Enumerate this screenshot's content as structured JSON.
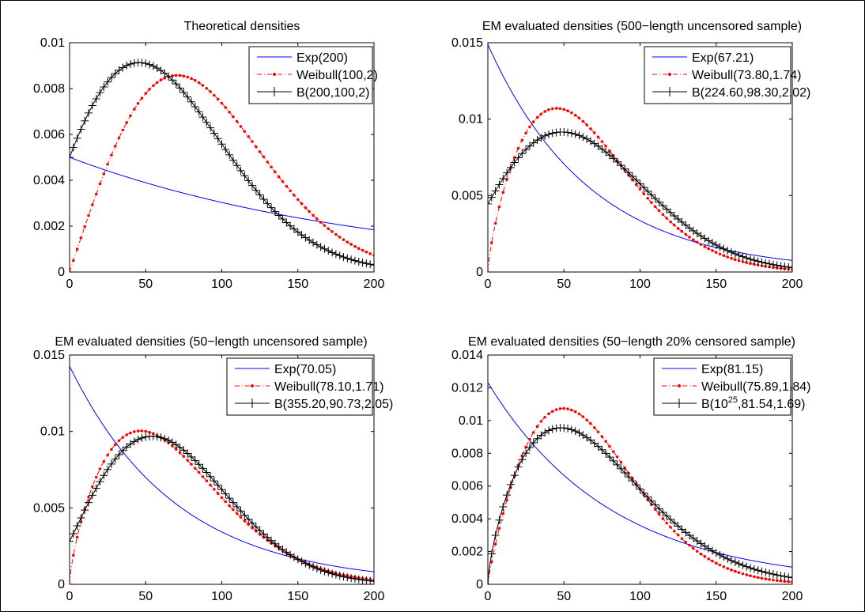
{
  "chart_data": [
    {
      "type": "line",
      "title": "Theoretical densities",
      "xlim": [
        0,
        200
      ],
      "ylim": [
        0,
        0.01
      ],
      "xticks": [
        0,
        50,
        100,
        150,
        200
      ],
      "xtick_labels": [
        "0",
        "50",
        "100",
        "150",
        "200"
      ],
      "yticks": [
        0,
        0.002,
        0.004,
        0.006,
        0.008,
        0.01
      ],
      "ytick_labels": [
        "0",
        "0.002",
        "0.004",
        "0.006",
        "0.008",
        "0.01"
      ],
      "legend_placement": "top-right",
      "series": [
        {
          "name": "Exp(200)",
          "dist": "exp",
          "params": {
            "theta": 200
          },
          "color": "#0000ff",
          "style": "solid"
        },
        {
          "name": "Weibull(100,2)",
          "dist": "weibull",
          "params": {
            "lambda": 100,
            "k": 2
          },
          "color": "#ff0000",
          "style": "dash-dot"
        },
        {
          "name": "B(200,100,2)",
          "dist": "mixture",
          "params": {
            "mu": 200,
            "lambda": 100,
            "k": 2
          },
          "color": "#000000",
          "style": "plus"
        }
      ]
    },
    {
      "type": "line",
      "title": "EM evaluated densities (500−length uncensored sample)",
      "xlim": [
        0,
        200
      ],
      "ylim": [
        0,
        0.015
      ],
      "xticks": [
        0,
        50,
        100,
        150,
        200
      ],
      "xtick_labels": [
        "0",
        "50",
        "100",
        "150",
        "200"
      ],
      "yticks": [
        0,
        0.005,
        0.01,
        0.015
      ],
      "ytick_labels": [
        "0",
        "0.005",
        "0.01",
        "0.015"
      ],
      "legend_placement": "top-right",
      "series": [
        {
          "name": "Exp(67.21)",
          "dist": "exp",
          "params": {
            "theta": 67.21
          },
          "color": "#0000ff",
          "style": "solid"
        },
        {
          "name": "Weibull(73.80,1.74)",
          "dist": "weibull",
          "params": {
            "lambda": 73.8,
            "k": 1.74
          },
          "color": "#ff0000",
          "style": "dash-dot"
        },
        {
          "name": "B(224.60,98.30,2.02)",
          "dist": "mixture",
          "params": {
            "mu": 224.6,
            "lambda": 98.3,
            "k": 2.02
          },
          "color": "#000000",
          "style": "plus"
        }
      ]
    },
    {
      "type": "line",
      "title": "EM evaluated densities (50−length uncensored sample)",
      "xlim": [
        0,
        200
      ],
      "ylim": [
        0,
        0.015
      ],
      "xticks": [
        0,
        50,
        100,
        150,
        200
      ],
      "xtick_labels": [
        "0",
        "50",
        "100",
        "150",
        "200"
      ],
      "yticks": [
        0,
        0.005,
        0.01,
        0.015
      ],
      "ytick_labels": [
        "0",
        "0.005",
        "0.01",
        "0.015"
      ],
      "legend_placement": "top-right",
      "series": [
        {
          "name": "Exp(70.05)",
          "dist": "exp",
          "params": {
            "theta": 70.05
          },
          "color": "#0000ff",
          "style": "solid"
        },
        {
          "name": "Weibull(78.10,1.71)",
          "dist": "weibull",
          "params": {
            "lambda": 78.1,
            "k": 1.71
          },
          "color": "#ff0000",
          "style": "dash-dot"
        },
        {
          "name": "B(355.20,90.73,2.05)",
          "dist": "mixture",
          "params": {
            "mu": 355.2,
            "lambda": 90.73,
            "k": 2.05
          },
          "color": "#000000",
          "style": "plus"
        }
      ]
    },
    {
      "type": "line",
      "title": "EM evaluated densities (50−length 20% censored sample)",
      "xlim": [
        0,
        200
      ],
      "ylim": [
        0,
        0.014
      ],
      "xticks": [
        0,
        50,
        100,
        150,
        200
      ],
      "xtick_labels": [
        "0",
        "50",
        "100",
        "150",
        "200"
      ],
      "yticks": [
        0,
        0.002,
        0.004,
        0.006,
        0.008,
        0.01,
        0.012,
        0.014
      ],
      "ytick_labels": [
        "0",
        "0.002",
        "0.004",
        "0.006",
        "0.008",
        "0.01",
        "0.012",
        "0.014"
      ],
      "legend_placement": "top-right",
      "series": [
        {
          "name": "Exp(81.15)",
          "dist": "exp",
          "params": {
            "theta": 81.15
          },
          "color": "#0000ff",
          "style": "solid"
        },
        {
          "name": "Weibull(75.89,1.84)",
          "dist": "weibull",
          "params": {
            "lambda": 75.89,
            "k": 1.84
          },
          "color": "#ff0000",
          "style": "dash-dot"
        },
        {
          "name": "B(10^25,81.54,1.69)",
          "name_parts": [
            "B(10",
            "25",
            ",81.54,1.69)"
          ],
          "dist": "mixture",
          "params": {
            "mu": 1e+25,
            "lambda": 81.54,
            "k": 1.69
          },
          "color": "#000000",
          "style": "plus"
        }
      ]
    }
  ]
}
